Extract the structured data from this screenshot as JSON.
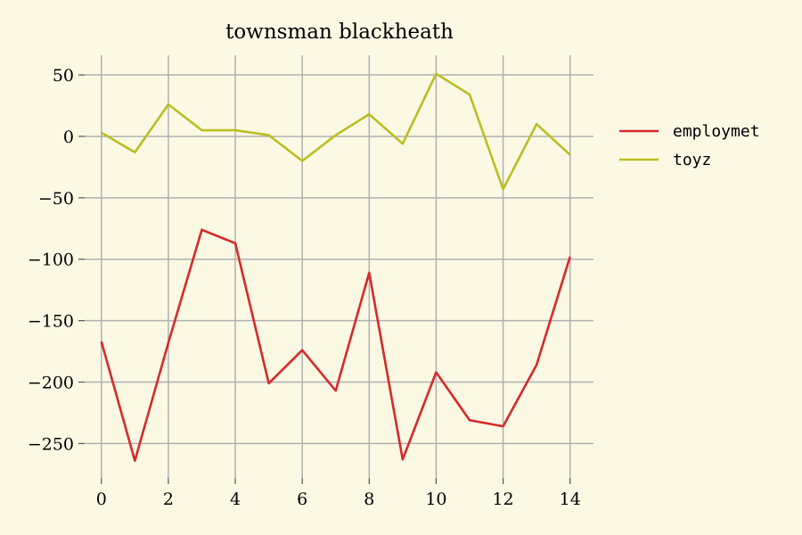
{
  "chart_data": {
    "type": "line",
    "title": "townsman blackheath",
    "xlabel": "",
    "ylabel": "",
    "x": [
      0,
      1,
      2,
      3,
      4,
      5,
      6,
      7,
      8,
      9,
      10,
      11,
      12,
      13,
      14
    ],
    "xlim": [
      -0.5,
      14.7
    ],
    "ylim": [
      -278,
      66
    ],
    "xticks": [
      0,
      2,
      4,
      6,
      8,
      10,
      12,
      14
    ],
    "yticks": [
      50,
      0,
      -50,
      -100,
      -150,
      -200,
      -250
    ],
    "xtick_labels": [
      "0",
      "2",
      "4",
      "6",
      "8",
      "10",
      "12",
      "14"
    ],
    "ytick_labels": [
      "50",
      "0",
      "−50",
      "−100",
      "−150",
      "−200",
      "−250"
    ],
    "grid": true,
    "legend_position": "right, outside plot",
    "series": [
      {
        "name": "employmet",
        "color": "#d62a2a",
        "values": [
          -167,
          -264,
          -168,
          -76,
          -87,
          -201,
          -174,
          -207,
          -111,
          -263,
          -192,
          -231,
          -236,
          -186,
          -98
        ]
      },
      {
        "name": "toyz",
        "color": "#bcbd22",
        "values": [
          3,
          -13,
          26,
          5,
          5,
          1,
          -20,
          1,
          18,
          -6,
          51,
          34,
          -43,
          10,
          -15
        ]
      }
    ]
  }
}
